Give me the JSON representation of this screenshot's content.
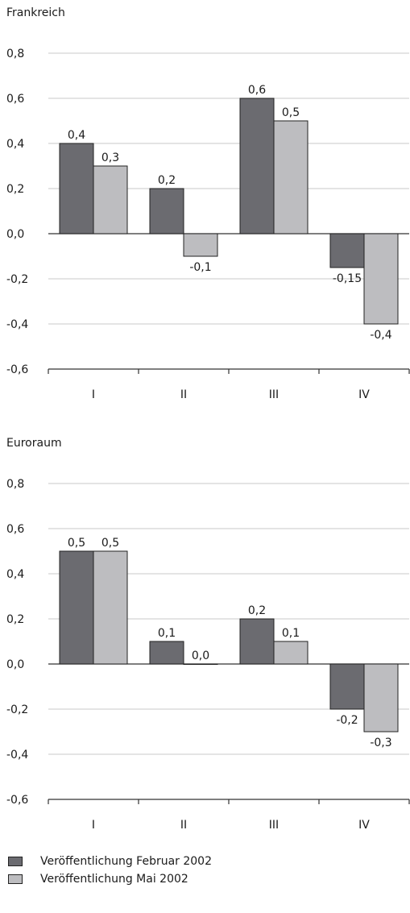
{
  "chart_data": [
    {
      "type": "bar",
      "title": "Frankreich",
      "categories": [
        "I",
        "II",
        "III",
        "IV"
      ],
      "series": [
        {
          "name": "Veröffentlichung Februar 2002",
          "values": [
            0.4,
            0.2,
            0.6,
            -0.15
          ],
          "labels": [
            "0,4",
            "0,2",
            "0,6",
            "-0,15"
          ]
        },
        {
          "name": "Veröffentlichung Mai 2002",
          "values": [
            0.3,
            -0.1,
            0.5,
            -0.4
          ],
          "labels": [
            "0,3",
            "-0,1",
            "0,5",
            "-0,4"
          ]
        }
      ],
      "ylim": [
        -0.6,
        0.8
      ],
      "yticks": [
        0.8,
        0.6,
        0.4,
        0.2,
        0.0,
        -0.2,
        -0.4,
        -0.6
      ],
      "ytick_labels": [
        "0,8",
        "0,6",
        "0,4",
        "0,2",
        "0,0",
        "-0,2",
        "-0,4",
        "-0,6"
      ],
      "grid": true
    },
    {
      "type": "bar",
      "title": "Euroraum",
      "categories": [
        "I",
        "II",
        "III",
        "IV"
      ],
      "series": [
        {
          "name": "Veröffentlichung Februar 2002",
          "values": [
            0.5,
            0.1,
            0.2,
            -0.2
          ],
          "labels": [
            "0,5",
            "0,1",
            "0,2",
            "-0,2"
          ]
        },
        {
          "name": "Veröffentlichung Mai 2002",
          "values": [
            0.5,
            0.0,
            0.1,
            -0.3
          ],
          "labels": [
            "0,5",
            "0,0",
            "0,1",
            "-0,3"
          ]
        }
      ],
      "ylim": [
        -0.6,
        0.8
      ],
      "yticks": [
        0.8,
        0.6,
        0.4,
        0.2,
        0.0,
        -0.2,
        -0.4,
        -0.6
      ],
      "ytick_labels": [
        "0,8",
        "0,6",
        "0,4",
        "0,2",
        "0,0",
        "-0,2",
        "-0,4",
        "-0,6"
      ],
      "grid": true
    }
  ],
  "legend": {
    "items": [
      {
        "label": "Veröffentlichung Februar 2002",
        "color": "#6b6b70"
      },
      {
        "label": "Veröffentlichung Mai 2002",
        "color": "#bdbdc0"
      }
    ]
  },
  "colors": {
    "series": [
      "#6b6b70",
      "#bdbdc0"
    ],
    "grid": "#c8c8c8",
    "axis": "#333333"
  }
}
